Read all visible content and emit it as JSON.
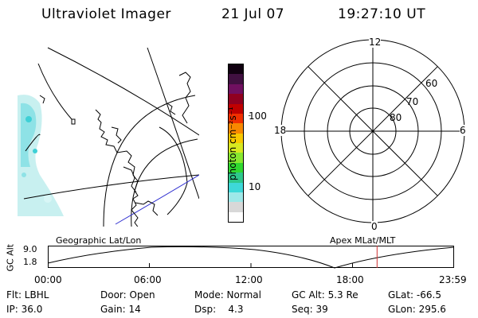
{
  "header": {
    "title": "Ultraviolet Imager",
    "date": "21 Jul 07",
    "time": "19:27:10 UT"
  },
  "colorbar": {
    "unit_label": "photon cm⁻²s⁻¹",
    "ticks": [
      "100",
      "10"
    ],
    "colors": [
      "#ffffff",
      "#d8d8d8",
      "#9ee8e8",
      "#3ed8d8",
      "#2ec88c",
      "#30d830",
      "#88e830",
      "#d8e820",
      "#f8c800",
      "#f88800",
      "#f03000",
      "#c00000",
      "#900020",
      "#701060",
      "#401040",
      "#100010"
    ]
  },
  "polar_plot": {
    "mlt_labels": {
      "top": "12",
      "left": "18",
      "right": "6",
      "bottom": "0"
    },
    "lat_labels": [
      "60",
      "70",
      "80"
    ]
  },
  "timeline": {
    "left_label": "Geographic Lat/Lon",
    "right_label": "Apex MLat/MLT",
    "axis_title": "GC Alt",
    "y_ticks": [
      "9.0",
      "1.8"
    ],
    "x_ticks": [
      "00:00",
      "06:00",
      "12:00",
      "18:00",
      "23:59"
    ],
    "current_marker_hour": 19.45
  },
  "status": {
    "row1": [
      {
        "name": "filter",
        "text": "Flt: LBHL"
      },
      {
        "name": "door",
        "text": "Door: Open"
      },
      {
        "name": "mode",
        "text": "Mode: Normal"
      },
      {
        "name": "gc-alt",
        "text": "GC Alt: 5.3 Re"
      },
      {
        "name": "glat",
        "text": "GLat: -66.5"
      }
    ],
    "row2": [
      {
        "name": "ip",
        "text": "IP: 36.0"
      },
      {
        "name": "gain",
        "text": "Gain: 14"
      },
      {
        "name": "dsp",
        "text": "Dsp:    4.3"
      },
      {
        "name": "seq",
        "text": "Seq: 39"
      },
      {
        "name": "glon",
        "text": "GLon: 295.6"
      }
    ]
  }
}
